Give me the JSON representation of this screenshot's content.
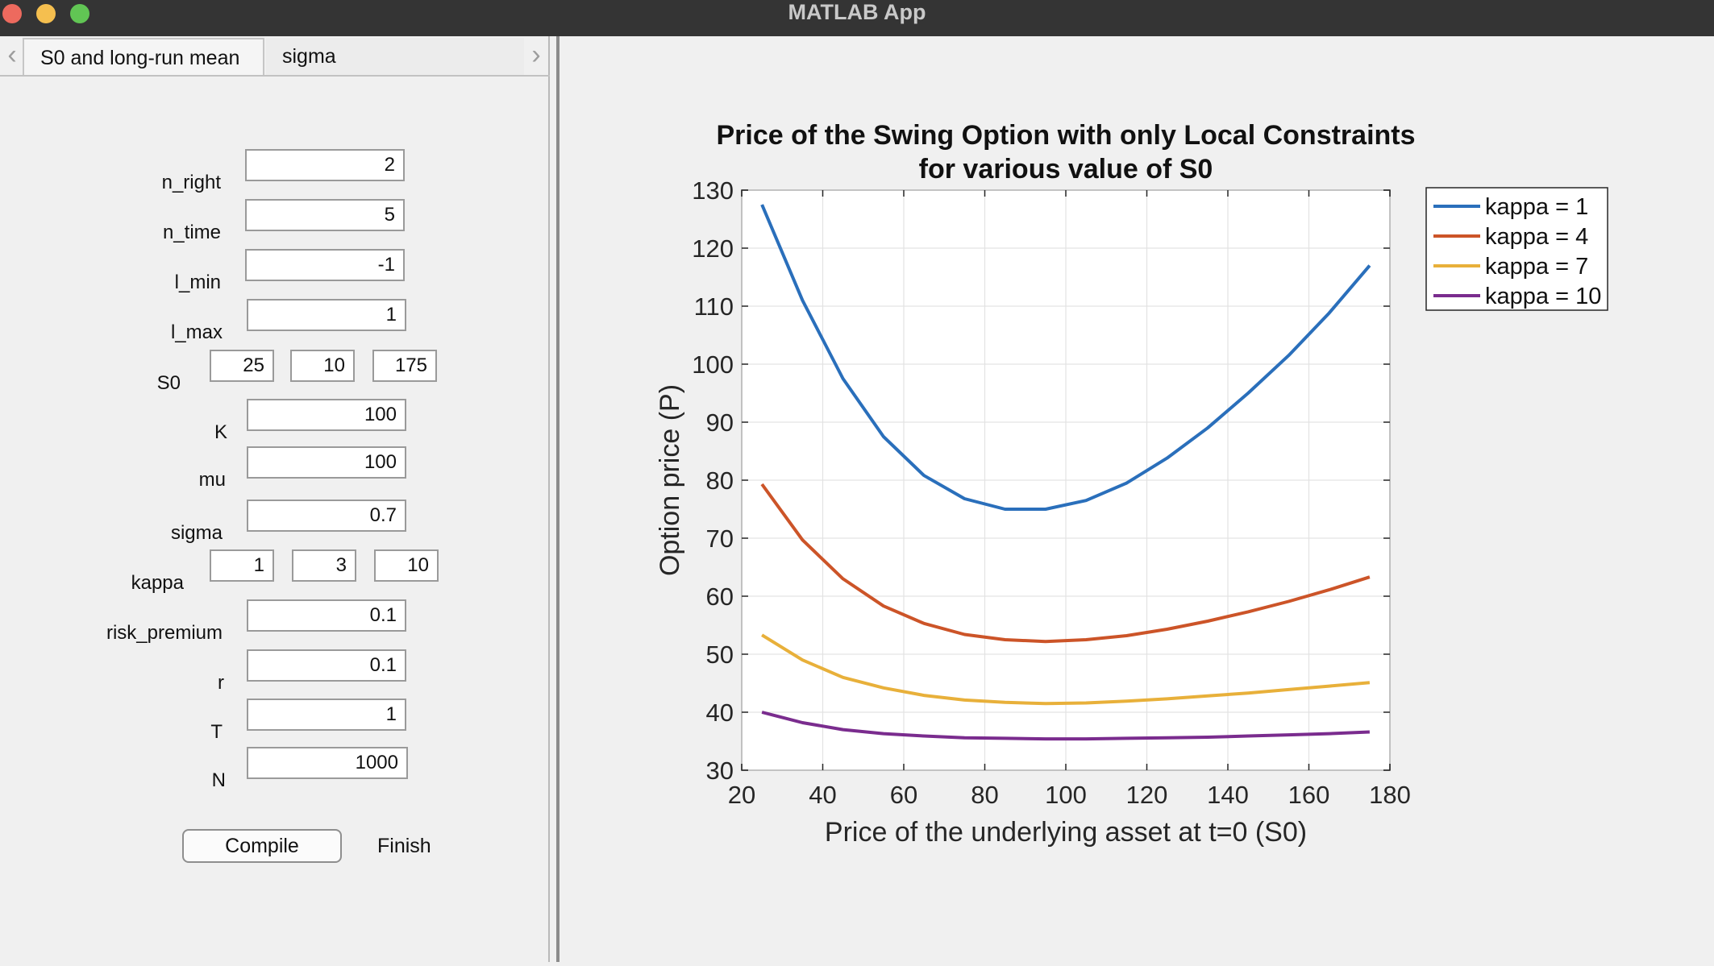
{
  "window": {
    "title": "MATLAB App"
  },
  "tabs": [
    {
      "label": "S0 and long-run mean",
      "active": true
    },
    {
      "label": "sigma",
      "active": false
    }
  ],
  "params": {
    "n_right": {
      "label": "n_right",
      "value": "2"
    },
    "n_time": {
      "label": "n_time",
      "value": "5"
    },
    "l_min": {
      "label": "l_min",
      "value": "-1"
    },
    "l_max": {
      "label": "l_max",
      "value": "1"
    },
    "S0": {
      "label": "S0",
      "values": [
        "25",
        "10",
        "175"
      ]
    },
    "K": {
      "label": "K",
      "value": "100"
    },
    "mu": {
      "label": "mu",
      "value": "100"
    },
    "sigma": {
      "label": "sigma",
      "value": "0.7"
    },
    "kappa": {
      "label": "kappa",
      "values": [
        "1",
        "3",
        "10"
      ]
    },
    "risk_premium": {
      "label": "risk_premium",
      "value": "0.1"
    },
    "r": {
      "label": "r",
      "value": "0.1"
    },
    "T": {
      "label": "T",
      "value": "1"
    },
    "N": {
      "label": "N",
      "value": "1000"
    }
  },
  "buttons": {
    "compile": "Compile",
    "finish": "Finish"
  },
  "chart_data": {
    "type": "line",
    "title": [
      "Price of the Swing Option with only Local Constraints",
      "for various value of S0"
    ],
    "xlabel": "Price of the underlying asset at t=0 (S0)",
    "ylabel": "Option price (P)",
    "xlim": [
      20,
      180
    ],
    "ylim": [
      30,
      130
    ],
    "xticks": [
      20,
      40,
      60,
      80,
      100,
      120,
      140,
      160,
      180
    ],
    "yticks": [
      30,
      40,
      50,
      60,
      70,
      80,
      90,
      100,
      110,
      120,
      130
    ],
    "grid": true,
    "legend_position": "outside-top-right",
    "x": [
      25,
      35,
      45,
      55,
      65,
      75,
      85,
      95,
      105,
      115,
      125,
      135,
      145,
      155,
      165,
      175
    ],
    "series": [
      {
        "name": "kappa = 1",
        "color": "#2a6fbb",
        "values": [
          127.5,
          111,
          97.5,
          87.5,
          80.8,
          76.8,
          75,
          75,
          76.5,
          79.5,
          83.8,
          89,
          95,
          101.5,
          108.8,
          117
        ]
      },
      {
        "name": "kappa = 4",
        "color": "#cc5428",
        "values": [
          79.3,
          69.7,
          63,
          58.3,
          55.3,
          53.4,
          52.5,
          52.2,
          52.5,
          53.2,
          54.3,
          55.7,
          57.3,
          59.1,
          61.1,
          63.3
        ]
      },
      {
        "name": "kappa = 7",
        "color": "#e8b03a",
        "values": [
          53.3,
          49,
          46,
          44.2,
          42.9,
          42.1,
          41.7,
          41.5,
          41.6,
          41.9,
          42.3,
          42.8,
          43.3,
          43.9,
          44.5,
          45.1
        ]
      },
      {
        "name": "kappa = 10",
        "color": "#7a2c8e",
        "values": [
          40,
          38.2,
          37,
          36.3,
          35.9,
          35.6,
          35.5,
          35.4,
          35.4,
          35.5,
          35.6,
          35.7,
          35.9,
          36.1,
          36.3,
          36.6
        ]
      }
    ]
  }
}
